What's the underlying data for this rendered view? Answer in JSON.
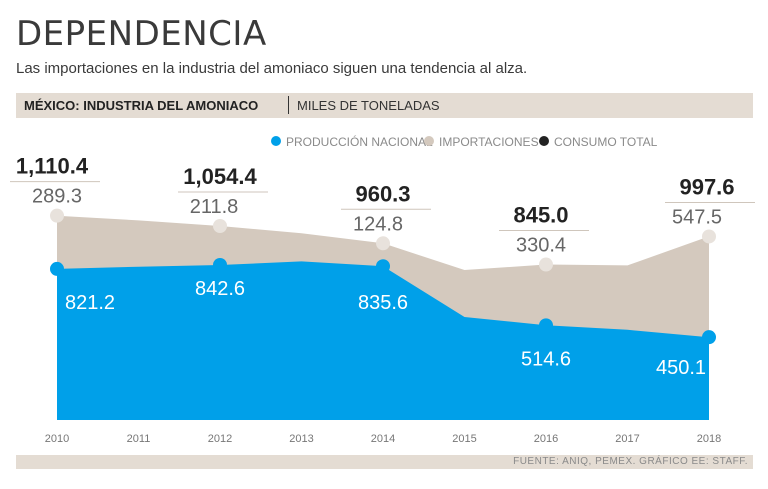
{
  "header": {
    "title": "DEPENDENCIA",
    "subtitle": "Las importaciones en la industria del amoniaco siguen una tendencia al alza.",
    "bar_bold": "MÉXICO: INDUSTRIA DEL AMONIACO",
    "bar_light": "MILES DE TONELADAS"
  },
  "footer": {
    "source": "FUENTE: ANIQ, PEMEX. GRÁFICO EE: STAFF."
  },
  "colors": {
    "production": "#00a0e9",
    "imports": "#d4c9be",
    "total": "#222222"
  },
  "chart_data": {
    "type": "area",
    "x": [
      "2010",
      "2011",
      "2012",
      "2013",
      "2014",
      "2015",
      "2016",
      "2017",
      "2018"
    ],
    "legend_position": "top",
    "series": [
      {
        "name": "PRODUCCIÓN NACIONAL",
        "values": [
          821.2,
          null,
          842.6,
          null,
          835.6,
          null,
          514.6,
          null,
          450.1
        ]
      },
      {
        "name": "IMPORTACIONES",
        "values": [
          289.3,
          null,
          211.8,
          null,
          124.8,
          null,
          330.4,
          null,
          547.5
        ]
      },
      {
        "name": "CONSUMO TOTAL",
        "values": [
          1110.4,
          null,
          1054.4,
          null,
          960.3,
          null,
          845.0,
          null,
          997.6
        ]
      }
    ],
    "labels": {
      "production": [
        "821.2",
        "842.6",
        "835.6",
        "514.6",
        "450.1"
      ],
      "imports": [
        "289.3",
        "211.8",
        "124.8",
        "330.4",
        "547.5"
      ],
      "total": [
        "1,110.4",
        "1,054.4",
        "960.3",
        "845.0",
        "997.6"
      ],
      "label_years": [
        "2010",
        "2012",
        "2014",
        "2016",
        "2018"
      ]
    },
    "ylim": [
      0,
      1300
    ],
    "grid": false
  }
}
